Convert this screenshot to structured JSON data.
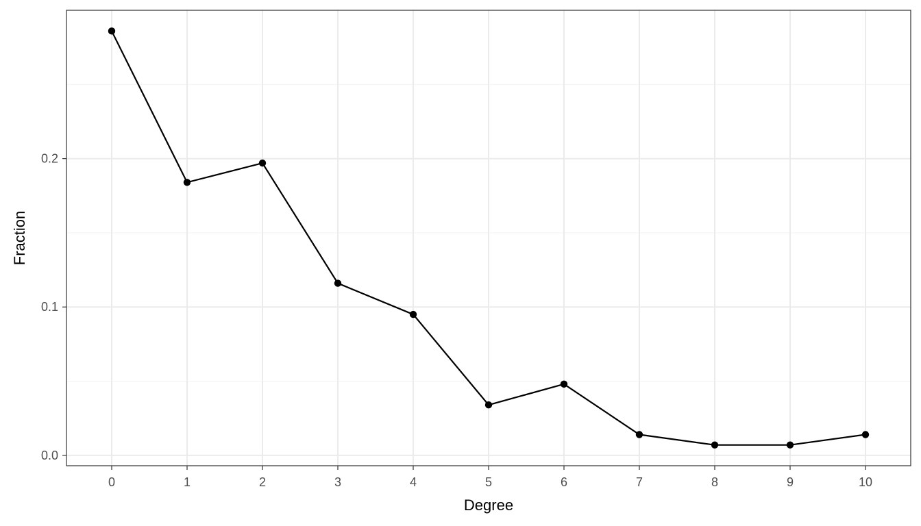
{
  "chart_data": {
    "type": "line",
    "title": "",
    "xlabel": "Degree",
    "ylabel": "Fraction",
    "x": [
      0,
      1,
      2,
      3,
      4,
      5,
      6,
      7,
      8,
      9,
      10
    ],
    "x_tick_labels": [
      "0",
      "1",
      "2",
      "3",
      "4",
      "5",
      "6",
      "7",
      "8",
      "9",
      "10"
    ],
    "y_tick_values": [
      0.0,
      0.1,
      0.2
    ],
    "y_tick_labels": [
      "0.0",
      "0.1",
      "0.2"
    ],
    "series": [
      {
        "values": [
          0.286,
          0.184,
          0.197,
          0.116,
          0.095,
          0.034,
          0.048,
          0.014,
          0.007,
          0.007,
          0.014
        ],
        "color": "#000000"
      }
    ],
    "xlim": [
      -0.6,
      10.6
    ],
    "ylim": [
      -0.007,
      0.3
    ],
    "grid": true,
    "legend": "none",
    "theme": "bw"
  }
}
